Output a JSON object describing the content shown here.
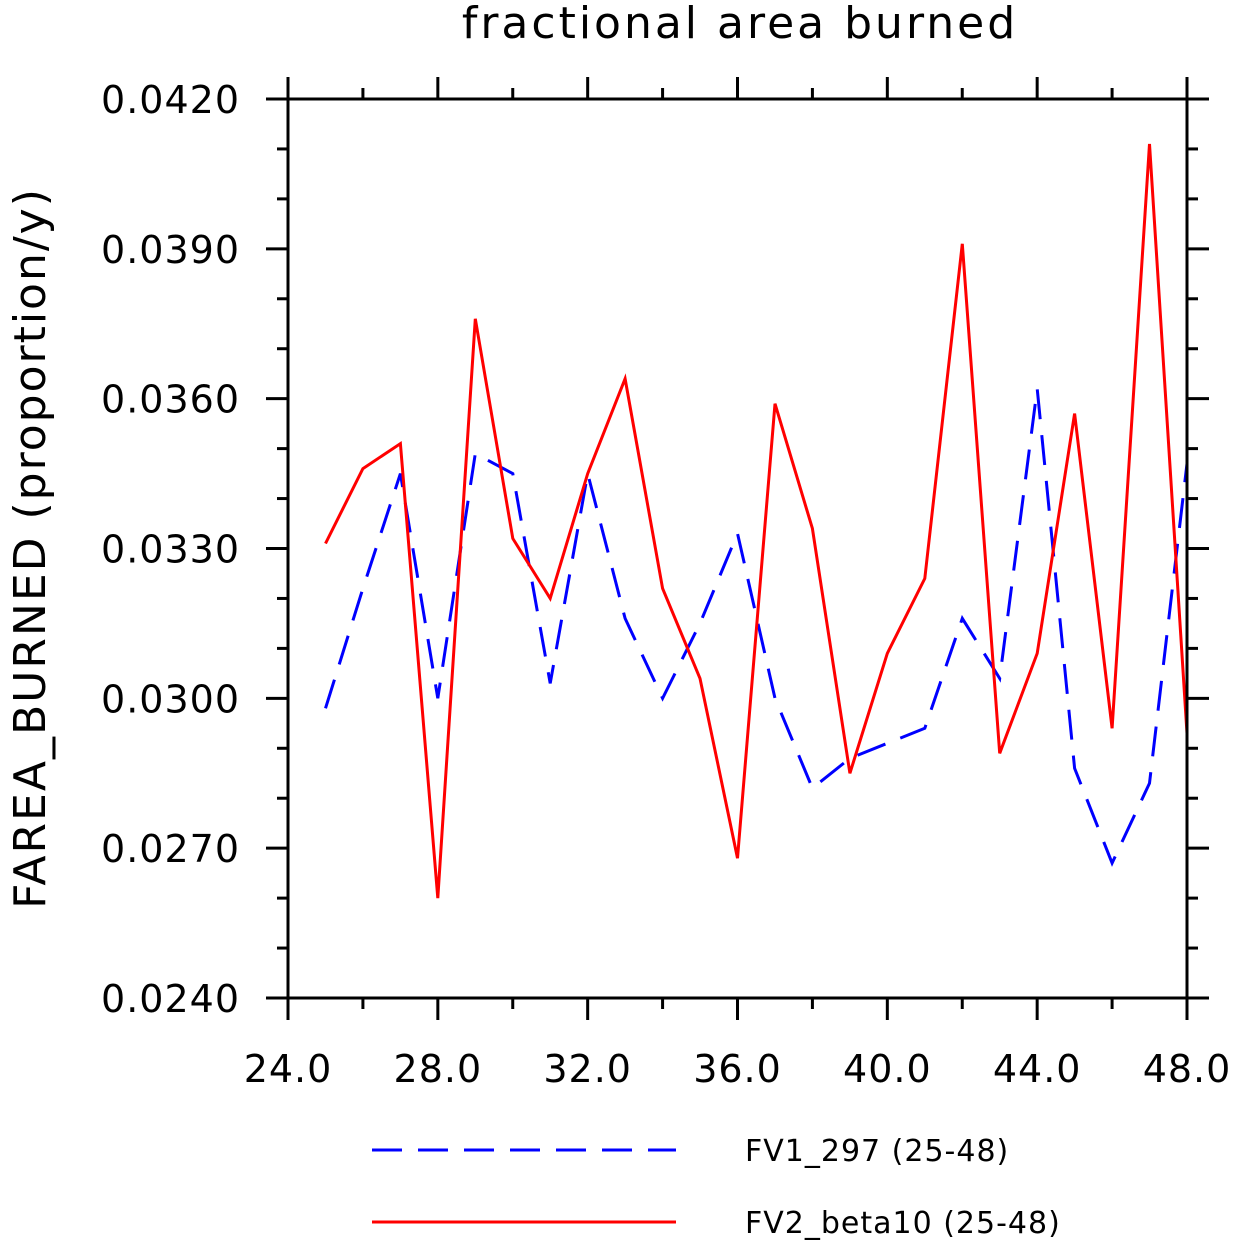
{
  "chart_data": {
    "type": "line",
    "title": "fractional area burned",
    "ylabel": "FAREA_BURNED   (proportion/y)",
    "xlabel": "",
    "xlim": [
      24.0,
      48.0
    ],
    "ylim": [
      0.024,
      0.042
    ],
    "x_ticks": [
      "24.0",
      "28.0",
      "32.0",
      "36.0",
      "40.0",
      "44.0",
      "48.0"
    ],
    "y_ticks": [
      "0.0240",
      "0.0270",
      "0.0300",
      "0.0330",
      "0.0360",
      "0.0390",
      "0.0420"
    ],
    "x": [
      25,
      26,
      27,
      28,
      29,
      30,
      31,
      32,
      33,
      34,
      35,
      36,
      37,
      38,
      39,
      40,
      41,
      42,
      43,
      44,
      45,
      46,
      47,
      48
    ],
    "series": [
      {
        "name": "FV1_297 (25-48)",
        "color": "#0000ff",
        "dash": "dashed",
        "values": [
          0.0298,
          0.0322,
          0.0345,
          0.03,
          0.0349,
          0.0345,
          0.0303,
          0.0345,
          0.0316,
          0.03,
          0.0315,
          0.0333,
          0.03,
          0.0282,
          0.0288,
          0.0291,
          0.0294,
          0.0316,
          0.0304,
          0.0362,
          0.0286,
          0.0267,
          0.0283,
          0.0347
        ]
      },
      {
        "name": "FV2_beta10 (25-48)",
        "color": "#ff0000",
        "dash": "solid",
        "values": [
          0.0331,
          0.0346,
          0.0351,
          0.026,
          0.0376,
          0.0332,
          0.032,
          0.0345,
          0.0364,
          0.0322,
          0.0304,
          0.0268,
          0.0359,
          0.0334,
          0.0285,
          0.0309,
          0.0324,
          0.0391,
          0.0289,
          0.0309,
          0.0357,
          0.0294,
          0.0411,
          0.0293
        ]
      }
    ],
    "grid": false,
    "legend_position": "bottom"
  }
}
